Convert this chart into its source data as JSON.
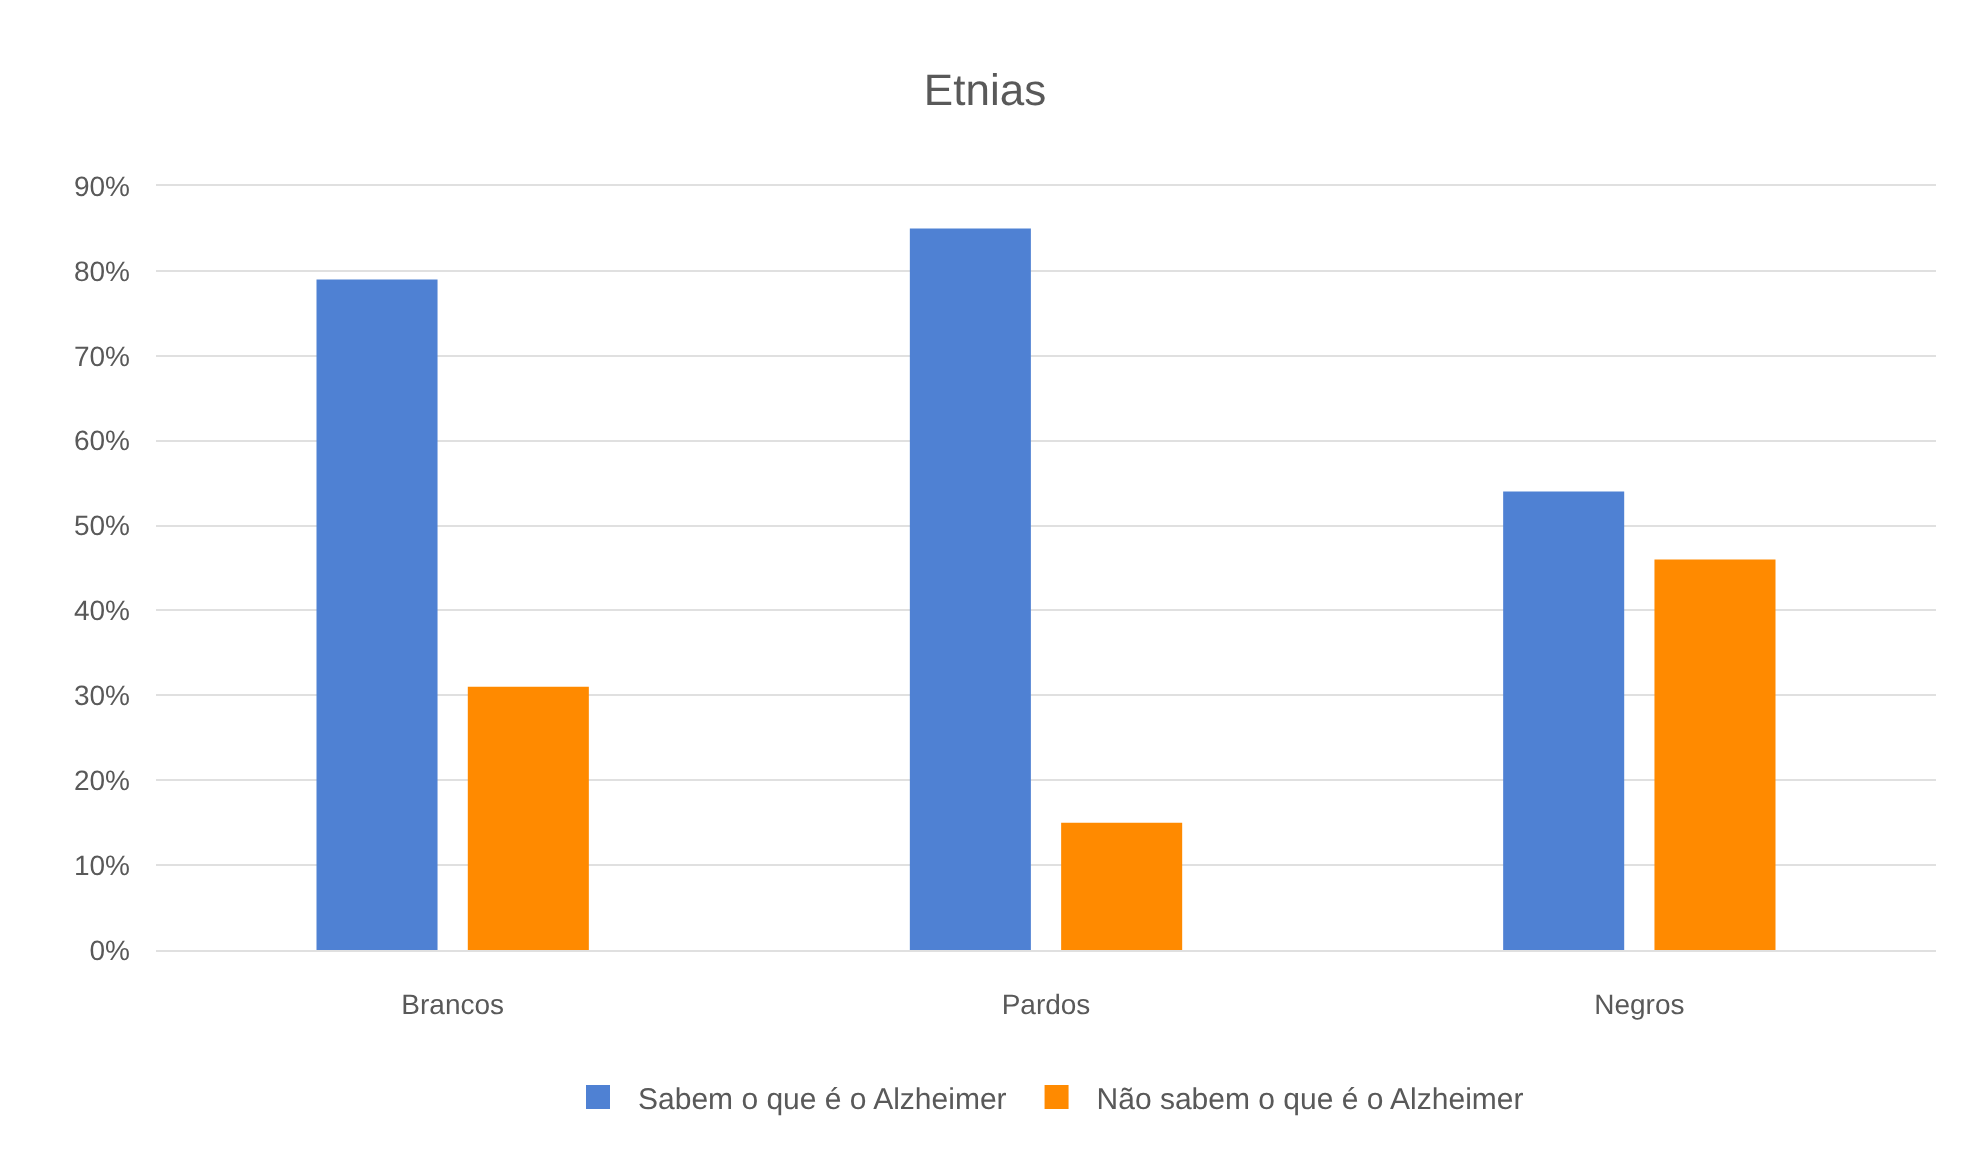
{
  "chart_data": {
    "type": "bar",
    "title": "Etnias",
    "categories": [
      "Brancos",
      "Pardos",
      "Negros"
    ],
    "series": [
      {
        "name": "Sabem o que é o Alzheimer",
        "color": "#4f81d3",
        "values": [
          79,
          85,
          54
        ]
      },
      {
        "name": "Não sabem o que é o Alzheimer",
        "color": "#ff8a00",
        "values": [
          31,
          15,
          46
        ]
      }
    ],
    "ylim": [
      0,
      90
    ],
    "yticks": [
      {
        "value": 0,
        "label": "0%"
      },
      {
        "value": 10,
        "label": "10%"
      },
      {
        "value": 20,
        "label": "20%"
      },
      {
        "value": 30,
        "label": "30%"
      },
      {
        "value": 40,
        "label": "40%"
      },
      {
        "value": 50,
        "label": "50%"
      },
      {
        "value": 60,
        "label": "60%"
      },
      {
        "value": 70,
        "label": "70%"
      },
      {
        "value": 80,
        "label": "80%"
      },
      {
        "value": 90,
        "label": "90%"
      }
    ],
    "grid": "y",
    "legend": "bottom"
  }
}
